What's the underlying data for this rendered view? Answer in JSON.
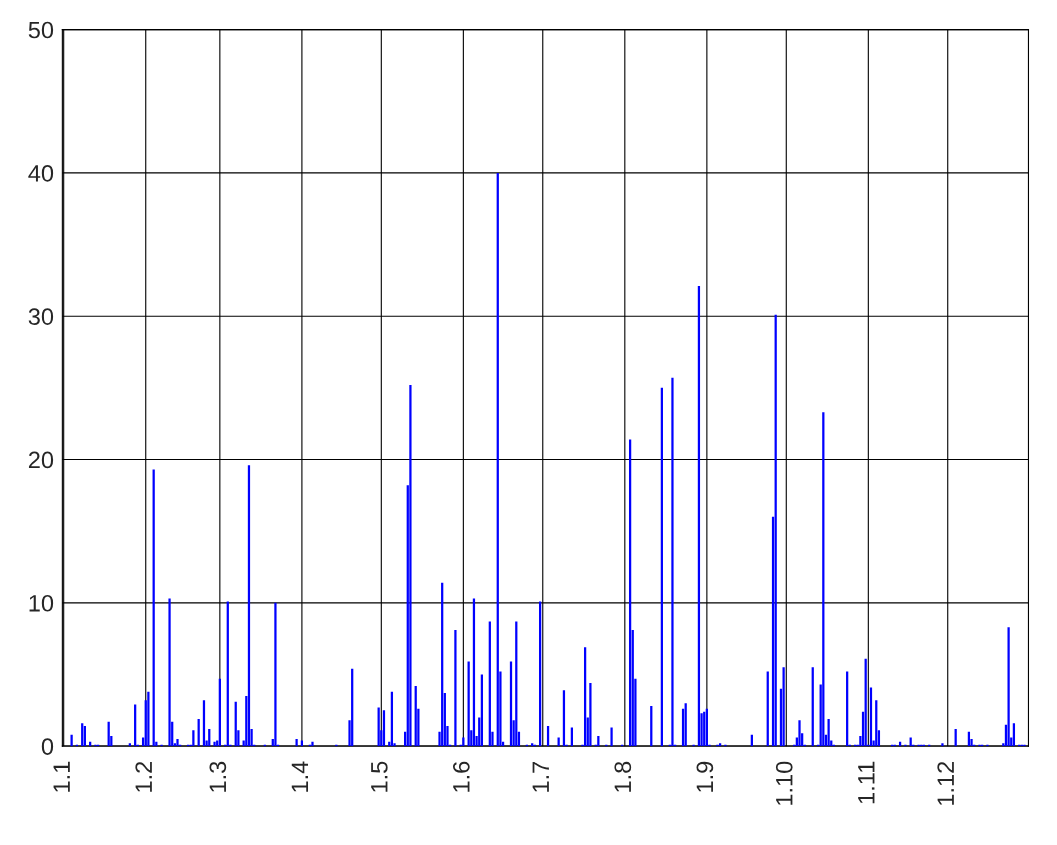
{
  "chart_data": {
    "type": "bar",
    "categories": [
      "1.1",
      null,
      null,
      null,
      null,
      null,
      null,
      null,
      null,
      null,
      null,
      null,
      null,
      null,
      null,
      null,
      null,
      null,
      null,
      null,
      null,
      null,
      null,
      null,
      null,
      null,
      null,
      null,
      null,
      null,
      null,
      "1.2",
      null,
      null,
      null,
      null,
      null,
      null,
      null,
      null,
      null,
      null,
      null,
      null,
      null,
      null,
      null,
      null,
      null,
      null,
      null,
      null,
      null,
      null,
      null,
      null,
      null,
      null,
      null,
      "1.3",
      null,
      null,
      null,
      null,
      null,
      null,
      null,
      null,
      null,
      null,
      null,
      null,
      null,
      null,
      null,
      null,
      null,
      null,
      null,
      null,
      null,
      null,
      null,
      null,
      null,
      null,
      null,
      null,
      null,
      null,
      "1.4",
      null,
      null,
      null,
      null,
      null,
      null,
      null,
      null,
      null,
      null,
      null,
      null,
      null,
      null,
      null,
      null,
      null,
      null,
      null,
      null,
      null,
      null,
      null,
      null,
      null,
      null,
      null,
      null,
      null,
      "1.5",
      null,
      null,
      null,
      null,
      null,
      null,
      null,
      null,
      null,
      null,
      null,
      null,
      null,
      null,
      null,
      null,
      null,
      null,
      null,
      null,
      null,
      null,
      null,
      null,
      null,
      null,
      null,
      null,
      null,
      null,
      "1.6",
      null,
      null,
      null,
      null,
      null,
      null,
      null,
      null,
      null,
      null,
      null,
      null,
      null,
      null,
      null,
      null,
      null,
      null,
      null,
      null,
      null,
      null,
      null,
      null,
      null,
      null,
      null,
      null,
      null,
      "1.7",
      null,
      null,
      null,
      null,
      null,
      null,
      null,
      null,
      null,
      null,
      null,
      null,
      null,
      null,
      null,
      null,
      null,
      null,
      null,
      null,
      null,
      null,
      null,
      null,
      null,
      null,
      null,
      null,
      null,
      null,
      "1.8",
      null,
      null,
      null,
      null,
      null,
      null,
      null,
      null,
      null,
      null,
      null,
      null,
      null,
      null,
      null,
      null,
      null,
      null,
      null,
      null,
      null,
      null,
      null,
      null,
      null,
      null,
      null,
      null,
      null,
      null,
      "1.9",
      null,
      null,
      null,
      null,
      null,
      null,
      null,
      null,
      null,
      null,
      null,
      null,
      null,
      null,
      null,
      null,
      null,
      null,
      null,
      null,
      null,
      null,
      null,
      null,
      null,
      null,
      null,
      null,
      null,
      "1.10",
      null,
      null,
      null,
      null,
      null,
      null,
      null,
      null,
      null,
      null,
      null,
      null,
      null,
      null,
      null,
      null,
      null,
      null,
      null,
      null,
      null,
      null,
      null,
      null,
      null,
      null,
      null,
      null,
      null,
      null,
      "1.11",
      null,
      null,
      null,
      null,
      null,
      null,
      null,
      null,
      null,
      null,
      null,
      null,
      null,
      null,
      null,
      null,
      null,
      null,
      null,
      null,
      null,
      null,
      null,
      null,
      null,
      null,
      null,
      null,
      null,
      "1.12",
      null,
      null,
      null,
      null,
      null,
      null,
      null,
      null,
      null,
      null,
      null,
      null,
      null,
      null,
      null,
      null,
      null,
      null,
      null,
      null,
      null,
      null,
      null,
      null,
      null,
      null,
      null,
      null,
      null,
      null
    ],
    "values": [
      0,
      0,
      0,
      0.8,
      0,
      0.1,
      0,
      1.6,
      1.4,
      0,
      0.3,
      0,
      0.1,
      0.1,
      0,
      0,
      0,
      1.7,
      0.7,
      0,
      0,
      0,
      0,
      0,
      0,
      0.2,
      0,
      2.9,
      0.1,
      0,
      0.6,
      3.2,
      3.8,
      0,
      19.3,
      0.3,
      0,
      0.1,
      0,
      0,
      10.3,
      1.7,
      0.2,
      0.5,
      0.1,
      0,
      0,
      0.1,
      0.1,
      1.1,
      0,
      1.9,
      0,
      3.2,
      0.4,
      1.2,
      0,
      0.3,
      0.4,
      4.7,
      0,
      0.1,
      10.1,
      0.1,
      0,
      3.1,
      1.1,
      0,
      0.4,
      3.5,
      19.6,
      1.2,
      0.1,
      0,
      0,
      0,
      0.1,
      0,
      0,
      0.5,
      10.0,
      0.1,
      0,
      0,
      0,
      0,
      0,
      0,
      0.5,
      0,
      0.4,
      0,
      0,
      0.1,
      0.3,
      0,
      0,
      0,
      0,
      0,
      0,
      0,
      0,
      0.1,
      0,
      0,
      0,
      0,
      1.8,
      5.4,
      0,
      0,
      0,
      0,
      0,
      0,
      0,
      0,
      0,
      2.7,
      1.1,
      2.5,
      0,
      0.3,
      3.8,
      0.2,
      0,
      0,
      0,
      1.0,
      18.2,
      25.2,
      0,
      4.2,
      2.6,
      0,
      0,
      0,
      0,
      0,
      0,
      0,
      1.0,
      11.4,
      3.7,
      1.4,
      0.1,
      0,
      8.1,
      0,
      0.1,
      0.6,
      0,
      5.9,
      1.1,
      10.3,
      0.7,
      2.0,
      5.0,
      0,
      0,
      8.7,
      1.0,
      0,
      40,
      5.2,
      0.3,
      0,
      0,
      5.9,
      1.8,
      8.7,
      1.0,
      0,
      0,
      0.1,
      0,
      0.2,
      0.1,
      0,
      10.1,
      0,
      0,
      1.4,
      0,
      0,
      0,
      0.6,
      0,
      3.9,
      0.1,
      0,
      1.3,
      0,
      0,
      0,
      0.1,
      6.9,
      2.0,
      4.4,
      0,
      0.1,
      0.7,
      0,
      0,
      0.1,
      0,
      1.3,
      0,
      0,
      0,
      0.1,
      0,
      0,
      21.4,
      8.1,
      4.7,
      0,
      0,
      0,
      0,
      0,
      2.8,
      0,
      0,
      0,
      25.0,
      0,
      0,
      0.1,
      25.7,
      0.1,
      0,
      0,
      2.6,
      3.0,
      0,
      0,
      0.1,
      0,
      32.1,
      2.3,
      2.4,
      2.6,
      0.1,
      0,
      0,
      0.1,
      0.2,
      0,
      0.1,
      0,
      0,
      0,
      0,
      0,
      0,
      0,
      0,
      0,
      0.8,
      0,
      0,
      0,
      0,
      0,
      5.2,
      0,
      16.0,
      30.1,
      0,
      4.0,
      5.5,
      0,
      0,
      0,
      0.1,
      0.6,
      1.8,
      0.9,
      0.1,
      0,
      0,
      5.5,
      0,
      0.1,
      4.3,
      23.3,
      0.8,
      1.9,
      0.4,
      0.1,
      0,
      0,
      0,
      0,
      5.2,
      0.1,
      0,
      0.1,
      0.1,
      0.7,
      2.4,
      6.1,
      0.1,
      4.1,
      0.4,
      3.2,
      1.1,
      0,
      0,
      0,
      0,
      0.1,
      0.1,
      0,
      0.3,
      0,
      0.1,
      0,
      0.6,
      0.1,
      0,
      0.1,
      0.1,
      0.1,
      0,
      0.1,
      0,
      0,
      0,
      0,
      0.2,
      0,
      0,
      0,
      0,
      1.2,
      0,
      0,
      0,
      0,
      1.0,
      0.5,
      0.1,
      0,
      0.1,
      0.1,
      0,
      0.1,
      0,
      0,
      0,
      0,
      0,
      0.2,
      1.5,
      8.3,
      0.6,
      1.6,
      0,
      0.1,
      0.1,
      0.1,
      0
    ],
    "color": "#0000ff",
    "ylim": [
      0,
      50
    ],
    "yticks": [
      0,
      10,
      20,
      30,
      40,
      50
    ],
    "grid": true,
    "legend": false
  }
}
